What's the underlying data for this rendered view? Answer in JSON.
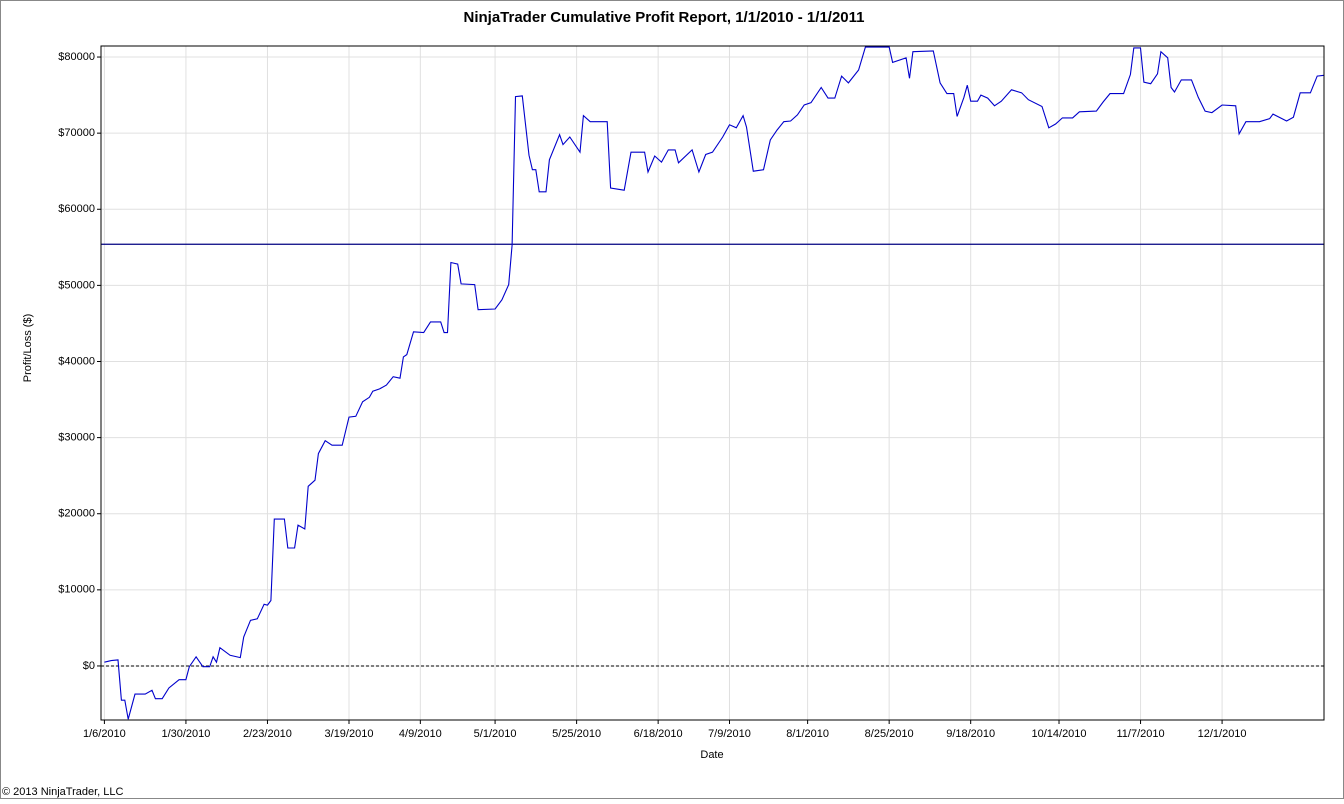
{
  "chart_data": {
    "type": "line",
    "title": "NinjaTrader Cumulative Profit Report, 1/1/2010 - 1/1/2011",
    "x_label": "Date",
    "y_label": "Profit/Loss ($)",
    "copyright": "© 2013 NinjaTrader, LLC",
    "xlim": [
      "1/5/2010",
      "12/31/2010"
    ],
    "xticks": [
      "1/6/2010",
      "1/30/2010",
      "2/23/2010",
      "3/19/2010",
      "4/9/2010",
      "5/1/2010",
      "5/25/2010",
      "6/18/2010",
      "7/9/2010",
      "8/1/2010",
      "8/25/2010",
      "9/18/2010",
      "10/14/2010",
      "11/7/2010",
      "12/1/2010"
    ],
    "ylim": [
      -7100,
      81450
    ],
    "yticks": [
      {
        "value": 0,
        "label": "$0"
      },
      {
        "value": 10000,
        "label": "$10000"
      },
      {
        "value": 20000,
        "label": "$20000"
      },
      {
        "value": 30000,
        "label": "$30000"
      },
      {
        "value": 40000,
        "label": "$40000"
      },
      {
        "value": 50000,
        "label": "$50000"
      },
      {
        "value": 60000,
        "label": "$60000"
      },
      {
        "value": 70000,
        "label": "$70000"
      },
      {
        "value": 80000,
        "label": "$80000"
      }
    ],
    "grid": true,
    "hline": {
      "value": 55400,
      "color": "#000080"
    },
    "x": [
      "1/6/2010",
      "1/8/2010",
      "1/10/2010",
      "1/11/2010",
      "1/12/2010",
      "1/13/2010",
      "1/15/2010",
      "1/18/2010",
      "1/20/2010",
      "1/21/2010",
      "1/23/2010",
      "1/25/2010",
      "1/28/2010",
      "1/30/2010",
      "1/31/2010",
      "2/2/2010",
      "2/4/2010",
      "2/6/2010",
      "2/7/2010",
      "2/8/2010",
      "2/9/2010",
      "2/12/2010",
      "2/15/2010",
      "2/16/2010",
      "2/18/2010",
      "2/20/2010",
      "2/22/2010",
      "2/23/2010",
      "2/24/2010",
      "2/25/2010",
      "2/28/2010",
      "3/1/2010",
      "3/3/2010",
      "3/4/2010",
      "3/6/2010",
      "3/7/2010",
      "3/9/2010",
      "3/10/2010",
      "3/12/2010",
      "3/14/2010",
      "3/17/2010",
      "3/19/2010",
      "3/21/2010",
      "3/23/2010",
      "3/25/2010",
      "3/26/2010",
      "3/28/2010",
      "3/30/2010",
      "4/1/2010",
      "4/3/2010",
      "4/4/2010",
      "4/5/2010",
      "4/7/2010",
      "4/10/2010",
      "4/12/2010",
      "4/15/2010",
      "4/16/2010",
      "4/17/2010",
      "4/18/2010",
      "4/20/2010",
      "4/21/2010",
      "4/25/2010",
      "4/26/2010",
      "5/1/2010",
      "5/3/2010",
      "5/5/2010",
      "5/6/2010",
      "5/7/2010",
      "5/9/2010",
      "5/11/2010",
      "5/12/2010",
      "5/13/2010",
      "5/14/2010",
      "5/16/2010",
      "5/17/2010",
      "5/20/2010",
      "5/21/2010",
      "5/23/2010",
      "5/26/2010",
      "5/27/2010",
      "5/29/2010",
      "6/3/2010",
      "6/4/2010",
      "6/8/2010",
      "6/10/2010",
      "6/14/2010",
      "6/15/2010",
      "6/17/2010",
      "6/19/2010",
      "6/21/2010",
      "6/23/2010",
      "6/24/2010",
      "6/28/2010",
      "6/30/2010",
      "7/2/2010",
      "7/4/2010",
      "7/7/2010",
      "7/9/2010",
      "7/11/2010",
      "7/13/2010",
      "7/14/2010",
      "7/16/2010",
      "7/19/2010",
      "7/21/2010",
      "7/23/2010",
      "7/25/2010",
      "7/27/2010",
      "7/29/2010",
      "7/31/2010",
      "8/2/2010",
      "8/5/2010",
      "8/7/2010",
      "8/9/2010",
      "8/11/2010",
      "8/13/2010",
      "8/16/2010",
      "8/18/2010",
      "8/25/2010",
      "8/26/2010",
      "8/30/2010",
      "8/31/2010",
      "9/1/2010",
      "9/7/2010",
      "9/9/2010",
      "9/11/2010",
      "9/13/2010",
      "9/14/2010",
      "9/16/2010",
      "9/17/2010",
      "9/18/2010",
      "9/20/2010",
      "9/21/2010",
      "9/23/2010",
      "9/25/2010",
      "9/27/2010",
      "9/30/2010",
      "10/3/2010",
      "10/5/2010",
      "10/9/2010",
      "10/11/2010",
      "10/13/2010",
      "10/15/2010",
      "10/18/2010",
      "10/20/2010",
      "10/25/2010",
      "10/27/2010",
      "10/29/2010",
      "11/2/2010",
      "11/4/2010",
      "11/5/2010",
      "11/7/2010",
      "11/8/2010",
      "11/10/2010",
      "11/12/2010",
      "11/13/2010",
      "11/15/2010",
      "11/16/2010",
      "11/17/2010",
      "11/19/2010",
      "11/22/2010",
      "11/24/2010",
      "11/26/2010",
      "11/28/2010",
      "12/1/2010",
      "12/5/2010",
      "12/6/2010",
      "12/8/2010",
      "12/12/2010",
      "12/15/2010",
      "12/16/2010",
      "12/20/2010",
      "12/22/2010",
      "12/24/2010",
      "12/27/2010",
      "12/29/2010",
      "12/31/2010"
    ],
    "series": [
      {
        "color": "#0000cc",
        "values": [
          500,
          700,
          800,
          -4500,
          -4500,
          -7000,
          -3700,
          -3700,
          -3200,
          -4300,
          -4300,
          -2900,
          -1800,
          -1800,
          -100,
          1200,
          -100,
          -100,
          1200,
          500,
          2400,
          1400,
          1100,
          3800,
          6000,
          6200,
          8100,
          8000,
          8600,
          19300,
          19300,
          15500,
          15500,
          18500,
          18000,
          23600,
          24400,
          27900,
          29600,
          29000,
          29000,
          32700,
          32800,
          34700,
          35300,
          36100,
          36400,
          36900,
          38000,
          37800,
          40600,
          40900,
          43900,
          43800,
          45200,
          45200,
          43800,
          43800,
          53000,
          52800,
          50200,
          50100,
          46800,
          46900,
          48100,
          50100,
          55300,
          74800,
          74900,
          67100,
          65200,
          65200,
          62300,
          62300,
          66500,
          69800,
          68500,
          69500,
          67500,
          72300,
          71500,
          71500,
          62800,
          62500,
          67500,
          67500,
          64900,
          67000,
          66200,
          67800,
          67800,
          66100,
          67800,
          64900,
          67200,
          67500,
          69500,
          71100,
          70700,
          72300,
          70800,
          65000,
          65200,
          69100,
          70400,
          71500,
          71600,
          72400,
          73700,
          74000,
          76000,
          74600,
          74600,
          77500,
          76600,
          78300,
          81300,
          81300,
          79300,
          79900,
          77200,
          80700,
          80800,
          76600,
          75200,
          75200,
          72200,
          74700,
          76300,
          74200,
          74200,
          75000,
          74600,
          73600,
          74200,
          75700,
          75300,
          74400,
          73500,
          70700,
          71200,
          72000,
          72000,
          72800,
          72900,
          74100,
          75200,
          75200,
          77700,
          81200,
          81200,
          76700,
          76500,
          77800,
          80700,
          79900,
          76000,
          75400,
          77000,
          77000,
          74700,
          72900,
          72700,
          73700,
          73600,
          69900,
          71500,
          71500,
          71900,
          72500,
          71600,
          72100,
          75300,
          75300,
          77500,
          77600
        ]
      }
    ]
  }
}
